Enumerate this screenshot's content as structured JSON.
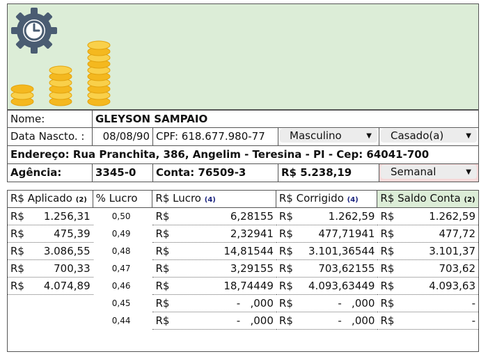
{
  "customer": {
    "name_label": "Nome:",
    "name": "GLEYSON SAMPAIO",
    "birth_label": "Data Nascto. :",
    "birth": "08/08/90",
    "cpf": "CPF: 618.677.980-77",
    "gender": "Masculino",
    "marital": "Casado(a)",
    "address": "Endereço: Rua Pranchita, 386, Angelim - Teresina - PI - Cep: 64041-700",
    "agency_label": "Agência:",
    "agency": "3345-0",
    "account": "Conta: 76509-3",
    "balance": "R$ 5.238,19",
    "frequency": "Semanal"
  },
  "colors": {
    "header_green": "#dcedd7",
    "accent_blue": "#1a237e",
    "pink_cell": "#f7d9d9",
    "coin": "#f4c12f",
    "gear": "#4a5c72"
  },
  "table": {
    "headers": [
      {
        "label": "R$ Aplicado",
        "note": "(2)"
      },
      {
        "label": "% Lucro",
        "note": ""
      },
      {
        "label": "R$ Lucro",
        "note": "(4)"
      },
      {
        "label": "R$ Corrigido",
        "note": "(4)"
      },
      {
        "label": "R$ Saldo Conta",
        "note": "(2)"
      }
    ],
    "rows": [
      {
        "aplicado_cur": "R$",
        "aplicado": "1.256,31",
        "pct": "0,50",
        "lucro_cur": "R$",
        "lucro": "6,28155",
        "corr_cur": "R$",
        "corr": "1.262,59",
        "saldo_cur": "R$",
        "saldo": "1.262,59"
      },
      {
        "aplicado_cur": "R$",
        "aplicado": "475,39",
        "pct": "0,49",
        "lucro_cur": "R$",
        "lucro": "2,32941",
        "corr_cur": "R$",
        "corr": "477,71941",
        "saldo_cur": "R$",
        "saldo": "477,72"
      },
      {
        "aplicado_cur": "R$",
        "aplicado": "3.086,55",
        "pct": "0,48",
        "lucro_cur": "R$",
        "lucro": "14,81544",
        "corr_cur": "R$",
        "corr": "3.101,36544",
        "saldo_cur": "R$",
        "saldo": "3.101,37"
      },
      {
        "aplicado_cur": "R$",
        "aplicado": "700,33",
        "pct": "0,47",
        "lucro_cur": "R$",
        "lucro": "3,29155",
        "corr_cur": "R$",
        "corr": "703,62155",
        "saldo_cur": "R$",
        "saldo": "703,62"
      },
      {
        "aplicado_cur": "R$",
        "aplicado": "4.074,89",
        "pct": "0,46",
        "lucro_cur": "R$",
        "lucro": "18,74449",
        "corr_cur": "R$",
        "corr": "4.093,63449",
        "saldo_cur": "R$",
        "saldo": "4.093,63"
      },
      {
        "aplicado_cur": "",
        "aplicado": "",
        "pct": "0,45",
        "lucro_cur": "R$",
        "lucro": "-   ,000",
        "corr_cur": "R$",
        "corr": "-   ,000",
        "saldo_cur": "R$",
        "saldo": "-"
      },
      {
        "aplicado_cur": "",
        "aplicado": "",
        "pct": "0,44",
        "lucro_cur": "R$",
        "lucro": "-   ,000",
        "corr_cur": "R$",
        "corr": "-   ,000",
        "saldo_cur": "R$",
        "saldo": "-"
      }
    ]
  }
}
